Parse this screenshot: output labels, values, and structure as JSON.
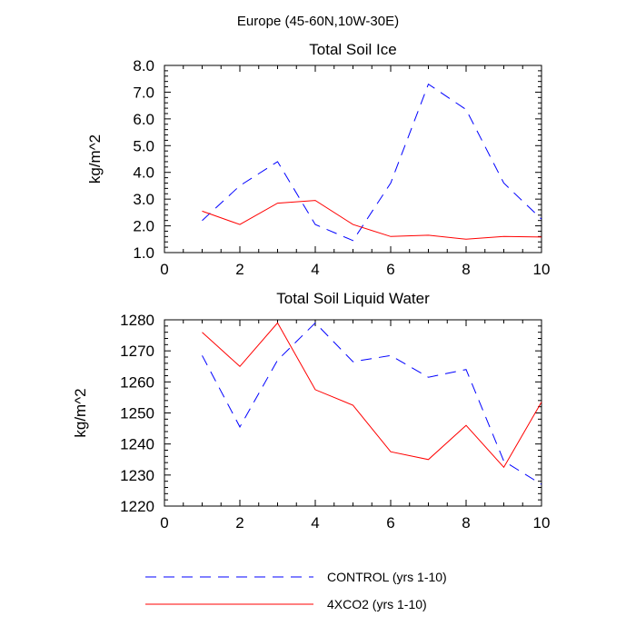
{
  "figure_title": "Europe (45-60N,10W-30E)",
  "legend": [
    {
      "label": "CONTROL (yrs 1-10)",
      "color": "#0000ff",
      "dash": "dashed"
    },
    {
      "label": "4XCO2 (yrs 1-10)",
      "color": "#ff0000",
      "dash": "solid"
    }
  ],
  "chart_data": [
    {
      "type": "line",
      "title": "Total Soil Ice",
      "xlabel": "",
      "ylabel": "kg/m^2",
      "xlim": [
        0,
        10
      ],
      "ylim": [
        1.0,
        8.0
      ],
      "x_ticks": [
        0,
        2,
        4,
        6,
        8,
        10
      ],
      "x_tick_labels": [
        "0",
        "2",
        "4",
        "6",
        "8",
        "10"
      ],
      "y_ticks": [
        1,
        2,
        3,
        4,
        5,
        6,
        7,
        8
      ],
      "y_tick_labels": [
        "1.0",
        "2.0",
        "3.0",
        "4.0",
        "5.0",
        "6.0",
        "7.0",
        "8.0"
      ],
      "x_minor_step": 0.5,
      "y_minor_step": 0.2,
      "x": [
        1,
        2,
        3,
        4,
        5,
        6,
        7,
        8,
        9,
        10
      ],
      "series": [
        {
          "name": "CONTROL (yrs 1-10)",
          "color": "#0000ff",
          "dash": "dashed",
          "values": [
            2.2,
            3.5,
            4.4,
            2.05,
            1.45,
            3.6,
            7.3,
            6.35,
            3.6,
            2.25
          ]
        },
        {
          "name": "4XCO2 (yrs 1-10)",
          "color": "#ff0000",
          "dash": "solid",
          "values": [
            2.55,
            2.05,
            2.85,
            2.95,
            2.05,
            1.6,
            1.65,
            1.5,
            1.6,
            1.58
          ]
        }
      ]
    },
    {
      "type": "line",
      "title": "Total Soil Liquid Water",
      "xlabel": "",
      "ylabel": "kg/m^2",
      "xlim": [
        0,
        10
      ],
      "ylim": [
        1220,
        1280
      ],
      "x_ticks": [
        0,
        2,
        4,
        6,
        8,
        10
      ],
      "x_tick_labels": [
        "0",
        "2",
        "4",
        "6",
        "8",
        "10"
      ],
      "y_ticks": [
        1220,
        1230,
        1240,
        1250,
        1260,
        1270,
        1280
      ],
      "y_tick_labels": [
        "1220",
        "1230",
        "1240",
        "1250",
        "1260",
        "1270",
        "1280"
      ],
      "x_minor_step": 0.5,
      "y_minor_step": 2,
      "x": [
        1,
        2,
        3,
        4,
        5,
        6,
        7,
        8,
        9,
        10
      ],
      "series": [
        {
          "name": "CONTROL (yrs 1-10)",
          "color": "#0000ff",
          "dash": "dashed",
          "values": [
            1268.5,
            1245.5,
            1267,
            1279,
            1266.5,
            1268.5,
            1261.5,
            1264,
            1234.5,
            1227
          ]
        },
        {
          "name": "4XCO2 (yrs 1-10)",
          "color": "#ff0000",
          "dash": "solid",
          "values": [
            1276,
            1265,
            1279,
            1257.5,
            1252.5,
            1237.5,
            1235,
            1246,
            1232.5,
            1253.5
          ]
        }
      ]
    }
  ]
}
